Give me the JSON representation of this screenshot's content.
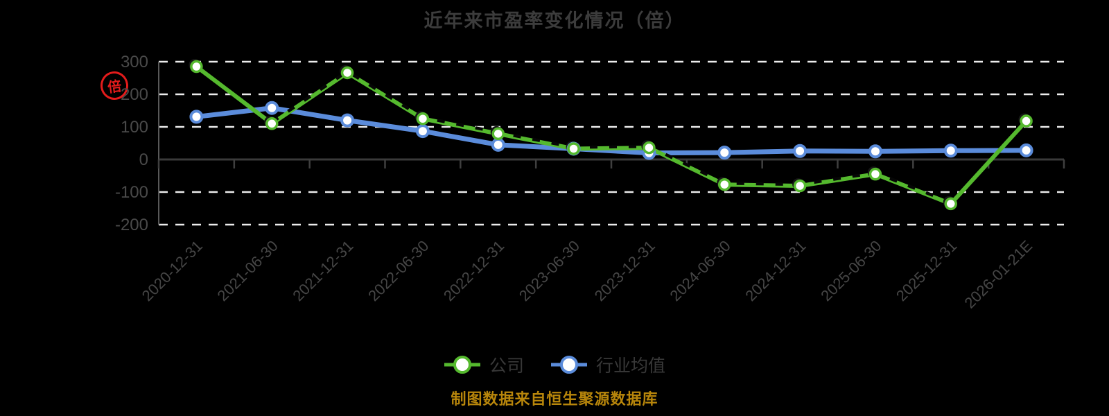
{
  "page": {
    "background": "#000000"
  },
  "title": {
    "text": "近年来市盈率变化情况（倍）",
    "color": "#3c3c3c"
  },
  "y_axis": {
    "unit_stamp": "倍"
  },
  "legend": {
    "items": [
      {
        "label": "公司",
        "color": "#55b92e"
      },
      {
        "label": "行业均值",
        "color": "#5b8cdb"
      }
    ]
  },
  "footer": {
    "source_note": "制图数据来自恒生聚源数据库",
    "color": "#b8860b"
  },
  "chart_data": {
    "type": "line",
    "title": "近年来市盈率变化情况（倍）",
    "unit": "倍",
    "categories": [
      "2020-12-31",
      "2021-06-30",
      "2021-12-31",
      "2022-06-30",
      "2022-12-31",
      "2023-06-30",
      "2023-12-31",
      "2024-06-30",
      "2024-12-31",
      "2025-06-30",
      "2025-12-31",
      "2026-01-21E"
    ],
    "series": [
      {
        "name": "公司",
        "color": "#55b92e",
        "marker": "hollow-circle",
        "line_style": "solid-with-dark-dash-overlay",
        "values": [
          285,
          110,
          266,
          125,
          79,
          33,
          36,
          -77,
          -81,
          -45,
          -136,
          118
        ]
      },
      {
        "name": "行业均值",
        "color": "#5b8cdb",
        "marker": "hollow-circle",
        "line_style": "solid",
        "values": [
          131,
          158,
          120,
          87,
          45,
          33,
          20,
          21,
          26,
          25,
          27,
          28
        ]
      }
    ],
    "ylim": [
      -200,
      300
    ],
    "yticks": [
      300,
      200,
      100,
      0,
      -100,
      -200
    ],
    "grid": "horizontal white dashed gridlines on black background",
    "x_axis_line_on_zero": true,
    "x_label_rotation": 45,
    "legend_position": "bottom-center"
  }
}
